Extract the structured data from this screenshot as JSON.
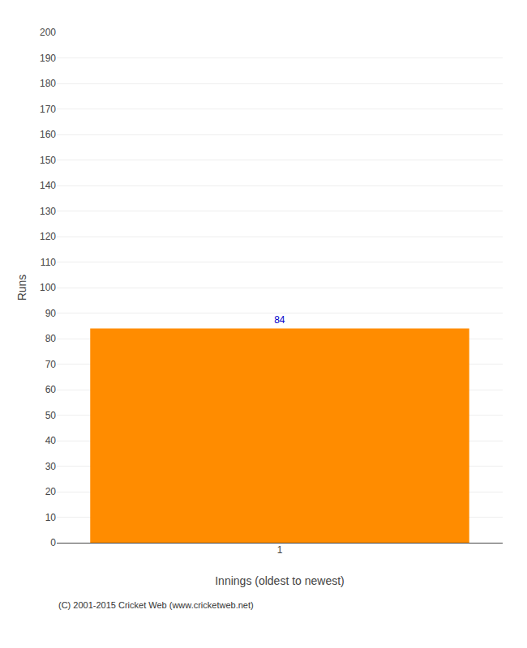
{
  "chart_data": {
    "type": "bar",
    "xlabel": "Innings (oldest to newest)",
    "ylabel": "Runs",
    "categories": [
      "1"
    ],
    "values": [
      84
    ],
    "color": "#FF8C00",
    "data_labels": true,
    "ylim": [
      0,
      200
    ],
    "yticks": [
      0,
      10,
      20,
      30,
      40,
      50,
      60,
      70,
      80,
      90,
      100,
      110,
      120,
      130,
      140,
      150,
      160,
      170,
      180,
      190,
      200
    ],
    "grid": true,
    "annotations": [
      "(C) 2001-2015 Cricket Web (www.cricketweb.net)"
    ]
  }
}
